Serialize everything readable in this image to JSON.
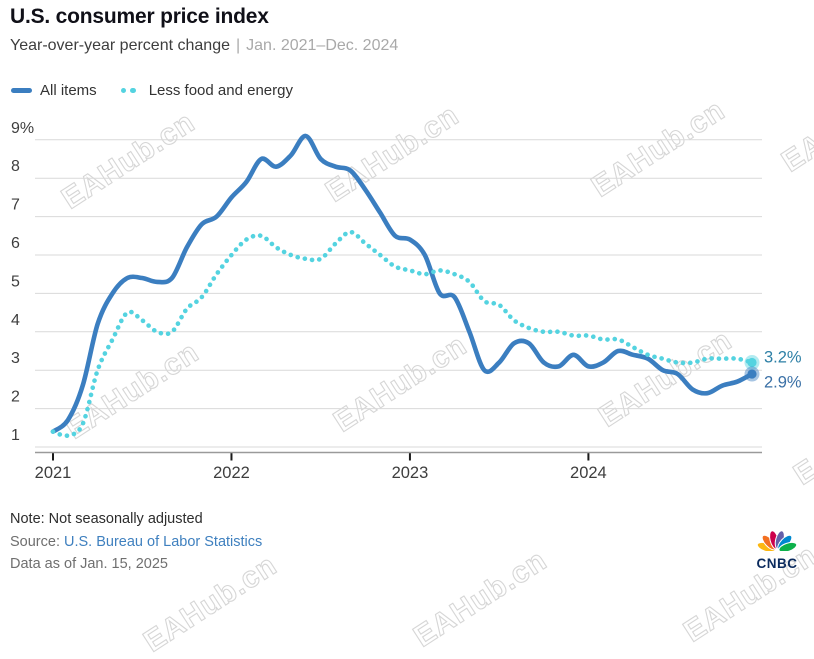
{
  "header": {
    "title": "U.S. consumer price index",
    "subtitle_main": "Year-over-year percent change",
    "subtitle_separator": "|",
    "subtitle_range": "Jan. 2021–Dec. 2024"
  },
  "legend": [
    {
      "label": "All items",
      "color": "#3b7ec0",
      "style": "solid"
    },
    {
      "label": "Less food and energy",
      "color": "#54d3e0",
      "style": "dotted"
    }
  ],
  "chart_data": {
    "type": "line",
    "title": "U.S. consumer price index",
    "x_unit": "month",
    "x_range": [
      "Jan. 2021",
      "Dec. 2024"
    ],
    "x_tick_labels": [
      "2021",
      "2022",
      "2023",
      "2024"
    ],
    "y_tick_labels": [
      "1",
      "2",
      "3",
      "4",
      "5",
      "6",
      "7",
      "8",
      "9%"
    ],
    "ylim": [
      1,
      9
    ],
    "grid": "horizontal",
    "series": [
      {
        "name": "All items",
        "color": "#3b7ec0",
        "line_style": "solid",
        "values": [
          1.4,
          1.7,
          2.6,
          4.2,
          5.0,
          5.4,
          5.4,
          5.3,
          5.4,
          6.2,
          6.8,
          7.0,
          7.5,
          7.9,
          8.5,
          8.3,
          8.6,
          9.1,
          8.5,
          8.3,
          8.2,
          7.7,
          7.1,
          6.5,
          6.4,
          6.0,
          5.0,
          4.9,
          4.0,
          3.0,
          3.2,
          3.7,
          3.7,
          3.2,
          3.1,
          3.4,
          3.1,
          3.2,
          3.5,
          3.4,
          3.3,
          3.0,
          2.9,
          2.5,
          2.4,
          2.6,
          2.7,
          2.9
        ]
      },
      {
        "name": "Less food and energy",
        "color": "#54d3e0",
        "line_style": "dotted",
        "values": [
          1.4,
          1.3,
          1.6,
          3.0,
          3.8,
          4.5,
          4.3,
          4.0,
          4.0,
          4.6,
          4.9,
          5.5,
          6.0,
          6.4,
          6.5,
          6.2,
          6.0,
          5.9,
          5.9,
          6.3,
          6.6,
          6.3,
          6.0,
          5.7,
          5.6,
          5.5,
          5.6,
          5.5,
          5.3,
          4.8,
          4.7,
          4.3,
          4.1,
          4.0,
          4.0,
          3.9,
          3.9,
          3.8,
          3.8,
          3.6,
          3.4,
          3.3,
          3.2,
          3.2,
          3.3,
          3.3,
          3.3,
          3.2
        ]
      }
    ],
    "end_labels": [
      {
        "text": "3.2%",
        "series": "Less food and energy",
        "color": "#2e80a6",
        "value": 3.2
      },
      {
        "text": "2.9%",
        "series": "All items",
        "color": "#3a70a6",
        "value": 2.9
      }
    ],
    "axis_colors": {
      "gridline": "#d9d9d9",
      "axis_line": "#9a9a9a",
      "tick": "#1a1a1a",
      "tick_label": "#3e3e3e"
    }
  },
  "footer": {
    "note": "Note: Not seasonally adjusted",
    "source_label": "Source:",
    "source_link": "U.S. Bureau of Labor Statistics",
    "data_as_of": "Data as of Jan. 15, 2025"
  },
  "branding": {
    "logo_text": "CNBC",
    "peacock_colors": [
      "#FCB711",
      "#F37021",
      "#CC004C",
      "#6460AA",
      "#0089D0",
      "#0DB14B"
    ]
  },
  "watermark": {
    "text": "EAHub.cn"
  }
}
